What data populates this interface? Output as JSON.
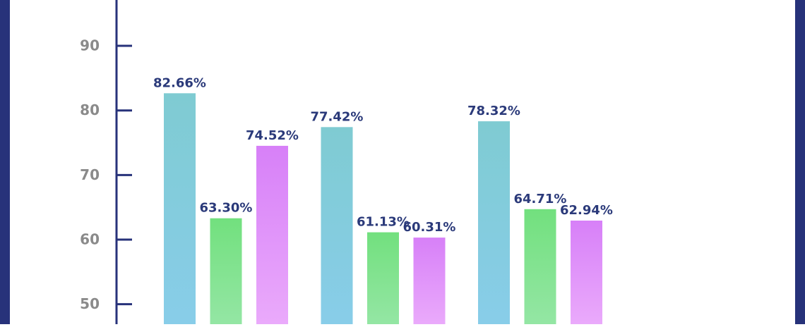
{
  "chart_data": {
    "type": "bar",
    "series": [
      {
        "color": "#7fcbd2",
        "values": [
          82.66,
          77.42,
          78.32
        ],
        "value_labels": [
          "82.66%",
          "77.42%",
          "78.32%"
        ]
      },
      {
        "color": "#72e07e",
        "values": [
          63.3,
          61.13,
          64.71
        ],
        "value_labels": [
          "63.30%",
          "61.13%",
          "64.71%"
        ]
      },
      {
        "color": "#d780f8",
        "values": [
          74.52,
          60.31,
          62.94
        ],
        "value_labels": [
          "74.52%",
          "60.31%",
          "62.94%"
        ]
      }
    ],
    "ylim": [
      46.9,
      97.1
    ],
    "yticks": [
      50,
      60,
      70,
      80,
      90
    ]
  }
}
